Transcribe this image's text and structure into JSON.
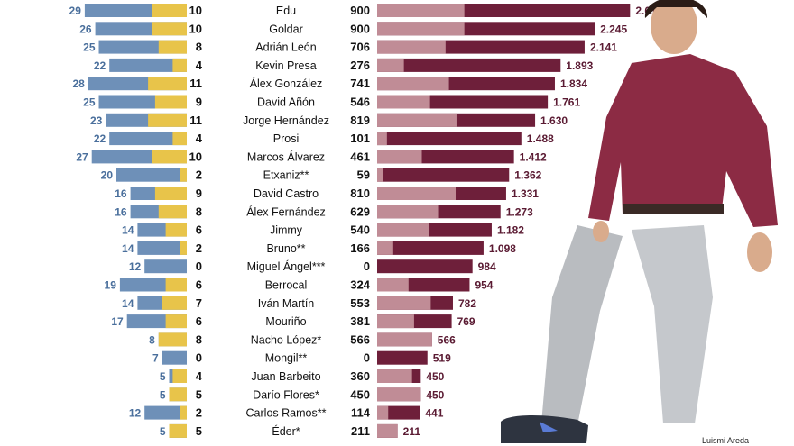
{
  "chart_data": {
    "type": "bar",
    "players": [
      "Edu",
      "Goldar",
      "Adrián León",
      "Kevin Presa",
      "Álex González",
      "David Añón",
      "Jorge Hernández",
      "Prosi",
      "Marcos Álvarez",
      "Etxaniz**",
      "David Castro",
      "Álex Fernández",
      "Jimmy",
      "Bruno**",
      "Miguel Ángel***",
      "Berrocal",
      "Iván Martín",
      "Mouriño",
      "Nacho López*",
      "Mongil**",
      "Juan Barbeito",
      "Darío Flores*",
      "Carlos Ramos**",
      "Éder*"
    ],
    "series": [
      {
        "values": [
          29,
          26,
          25,
          22,
          28,
          25,
          23,
          22,
          27,
          20,
          16,
          16,
          14,
          14,
          12,
          19,
          14,
          17,
          8,
          7,
          5,
          5,
          12,
          5
        ],
        "color": "#6e90b8"
      },
      {
        "values": [
          10,
          10,
          8,
          4,
          11,
          9,
          11,
          4,
          10,
          2,
          9,
          8,
          6,
          2,
          0,
          6,
          7,
          6,
          8,
          0,
          4,
          5,
          2,
          5
        ],
        "color": "#e8c44a"
      },
      {
        "values": [
          900,
          900,
          706,
          276,
          741,
          546,
          819,
          101,
          461,
          59,
          810,
          629,
          540,
          166,
          0,
          324,
          553,
          381,
          566,
          0,
          360,
          450,
          114,
          211
        ],
        "color": "#c08c96"
      },
      {
        "values": [
          2610,
          2245,
          2141,
          1893,
          1834,
          1761,
          1630,
          1488,
          1412,
          1362,
          1331,
          1273,
          1182,
          1098,
          984,
          954,
          782,
          769,
          566,
          519,
          450,
          450,
          441,
          211
        ],
        "color": "#6e1f3a"
      }
    ],
    "left_labels": [
      "29",
      "26",
      "25",
      "22",
      "28",
      "25",
      "23",
      "22",
      "27",
      "20",
      "16",
      "16",
      "14",
      "14",
      "12",
      "19",
      "14",
      "17",
      "8",
      "7",
      "5",
      "5",
      "12",
      "5"
    ],
    "mid_labels": [
      "10",
      "10",
      "8",
      "4",
      "11",
      "9",
      "11",
      "4",
      "10",
      "2",
      "9",
      "8",
      "6",
      "2",
      "0",
      "6",
      "7",
      "6",
      "8",
      "0",
      "4",
      "5",
      "2",
      "5"
    ],
    "right_left_labels": [
      "900",
      "900",
      "706",
      "276",
      "741",
      "546",
      "819",
      "101",
      "461",
      "59",
      "810",
      "629",
      "540",
      "166",
      "0",
      "324",
      "553",
      "381",
      "566",
      "0",
      "360",
      "450",
      "114",
      "211"
    ],
    "total_labels": [
      "2.610",
      "2.245",
      "2.141",
      "1.893",
      "1.834",
      "1.761",
      "1.630",
      "1.488",
      "1.412",
      "1.362",
      "1.331",
      "1.273",
      "1.182",
      "1.098",
      "984",
      "954",
      "782",
      "769",
      "566",
      "519",
      "450",
      "450",
      "441",
      "211"
    ],
    "colors": {
      "blue_label": "#4a6f9c",
      "dark_label": "#5a1a32"
    }
  },
  "photo": {
    "credit": "Luismi Areda"
  }
}
